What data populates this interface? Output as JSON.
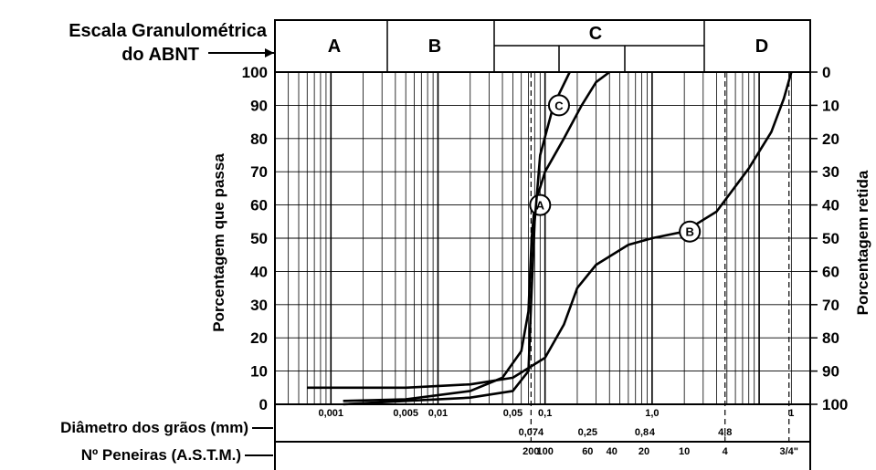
{
  "chart_data": {
    "type": "line",
    "scale_title_lines": [
      "Escala Granulométrica",
      "do ABNT"
    ],
    "ylabel_left": "Porcentagem que passa",
    "ylabel_right": "Porcentagem retida",
    "xlabel": "Diâmetro dos grãos (mm)",
    "sieve_label": "Nº Peneiras (A.S.T.M.)",
    "y_left_ticks": [
      "0",
      "10",
      "20",
      "30",
      "40",
      "50",
      "60",
      "70",
      "80",
      "90",
      "100"
    ],
    "y_right_ticks": [
      "0",
      "10",
      "20",
      "30",
      "40",
      "50",
      "60",
      "70",
      "80",
      "90",
      "100"
    ],
    "ylim": [
      0,
      100
    ],
    "x_scale": "log",
    "xlim_mm": [
      0.0003,
      30
    ],
    "zones": [
      "A",
      "B",
      "C",
      "D"
    ],
    "diameter_labels": [
      {
        "text": "0,001",
        "mm": 0.001,
        "row": 1
      },
      {
        "text": "0,005",
        "mm": 0.005,
        "row": 1
      },
      {
        "text": "0,01",
        "mm": 0.01,
        "row": 1
      },
      {
        "text": "0,05",
        "mm": 0.05,
        "row": 1
      },
      {
        "text": "0,1",
        "mm": 0.1,
        "row": 1
      },
      {
        "text": "1,0",
        "mm": 1.0,
        "row": 1
      },
      {
        "text": "1",
        "mm": 20,
        "row": 1
      },
      {
        "text": "0,074",
        "mm": 0.074,
        "row": 2
      },
      {
        "text": "0,25",
        "mm": 0.25,
        "row": 2
      },
      {
        "text": "0,8",
        "mm": 0.8,
        "row": 2
      },
      {
        "text": "4",
        "mm": 1.0,
        "row": 2
      },
      {
        "text": "4,8",
        "mm": 4.8,
        "row": 2
      }
    ],
    "sieves": [
      {
        "label": "200",
        "mm": 0.074
      },
      {
        "label": "100",
        "mm": 0.1
      },
      {
        "label": "60",
        "mm": 0.25
      },
      {
        "label": "40",
        "mm": 0.42
      },
      {
        "label": "20",
        "mm": 0.84
      },
      {
        "label": "10",
        "mm": 2.0
      },
      {
        "label": "4",
        "mm": 4.8
      },
      {
        "label": "3/4\"",
        "mm": 19
      }
    ],
    "series": [
      {
        "name": "A",
        "x": [
          0.0013,
          0.005,
          0.02,
          0.04,
          0.06,
          0.07,
          0.075,
          0.08,
          0.1,
          0.15,
          0.22,
          0.3,
          0.4
        ],
        "y": [
          1,
          1.5,
          4,
          8,
          16,
          28,
          50,
          60,
          70,
          80,
          90,
          97,
          100
        ]
      },
      {
        "name": "B",
        "x": [
          0.0006,
          0.001,
          0.005,
          0.02,
          0.05,
          0.1,
          0.15,
          0.2,
          0.3,
          0.6,
          1.0,
          2.0,
          4.0,
          8.0,
          13,
          17,
          20
        ],
        "y": [
          5,
          5,
          5,
          6,
          8,
          14,
          24,
          35,
          42,
          48,
          50,
          52,
          58,
          71,
          82,
          92,
          100
        ]
      },
      {
        "name": "C",
        "x": [
          0.0013,
          0.005,
          0.02,
          0.05,
          0.07,
          0.074,
          0.08,
          0.09,
          0.12,
          0.17
        ],
        "y": [
          0,
          1,
          2,
          4,
          10,
          30,
          55,
          75,
          90,
          100
        ]
      }
    ]
  }
}
